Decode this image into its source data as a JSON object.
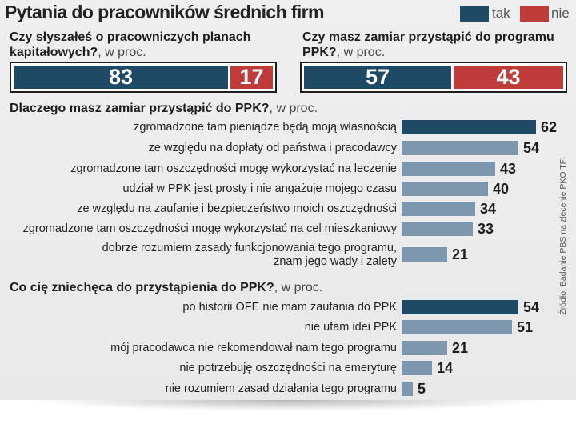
{
  "title": "Pytania do pracowników średnich firm",
  "legend": {
    "yes": "tak",
    "no": "nie"
  },
  "colors": {
    "yes": "#1f4a66",
    "no": "#c03c3a",
    "highlight": "#1f4a66",
    "bar": "#7d98ae"
  },
  "source": "Źródło: Badanie PBS na zlecenie PKO TFI",
  "unit": ", w proc.",
  "chart_data": [
    {
      "type": "bar",
      "stacked": true,
      "title_lines": [
        "Czy słyszałeś o pracowniczych planach",
        "kapitałowych?"
      ],
      "categories": [
        "tak",
        "nie"
      ],
      "values": [
        83,
        17
      ]
    },
    {
      "type": "bar",
      "stacked": true,
      "title_lines": [
        "Czy masz zamiar przystąpić do programu",
        "PPK?"
      ],
      "categories": [
        "tak",
        "nie"
      ],
      "values": [
        57,
        43
      ]
    },
    {
      "type": "bar",
      "orientation": "horizontal",
      "title": "Dlaczego masz zamiar przystąpić do PPK?",
      "rows": [
        {
          "label": [
            "zgromadzone tam pieniądze będą moją własnością"
          ],
          "value": 62
        },
        {
          "label": [
            "ze względu na dopłaty od państwa i pracodawcy"
          ],
          "value": 54
        },
        {
          "label": [
            "zgromadzone tam oszczędności mogę wykorzystać na leczenie"
          ],
          "value": 43
        },
        {
          "label": [
            "udział w PPK jest prosty i nie angażuje mojego czasu"
          ],
          "value": 40
        },
        {
          "label": [
            "ze względu na zaufanie i bezpieczeństwo moich oszczędności"
          ],
          "value": 34
        },
        {
          "label": [
            "zgromadzone tam oszczędności mogę wykorzystać na cel mieszkaniowy"
          ],
          "value": 33
        },
        {
          "label": [
            "dobrze rozumiem zasady funkcjonowania tego programu,",
            "znam jego wady i zalety"
          ],
          "value": 21
        }
      ]
    },
    {
      "type": "bar",
      "orientation": "horizontal",
      "title": "Co cię zniechęca do przystąpienia do PPK?",
      "rows": [
        {
          "label": [
            "po historii OFE nie mam zaufania do PPK"
          ],
          "value": 54
        },
        {
          "label": [
            "nie ufam idei PPK"
          ],
          "value": 51
        },
        {
          "label": [
            "mój pracodawca nie rekomendował nam tego programu"
          ],
          "value": 21
        },
        {
          "label": [
            "nie potrzebuję oszczędności na emeryturę"
          ],
          "value": 14
        },
        {
          "label": [
            "nie rozumiem zasad działania tego programu"
          ],
          "value": 5
        }
      ]
    }
  ]
}
